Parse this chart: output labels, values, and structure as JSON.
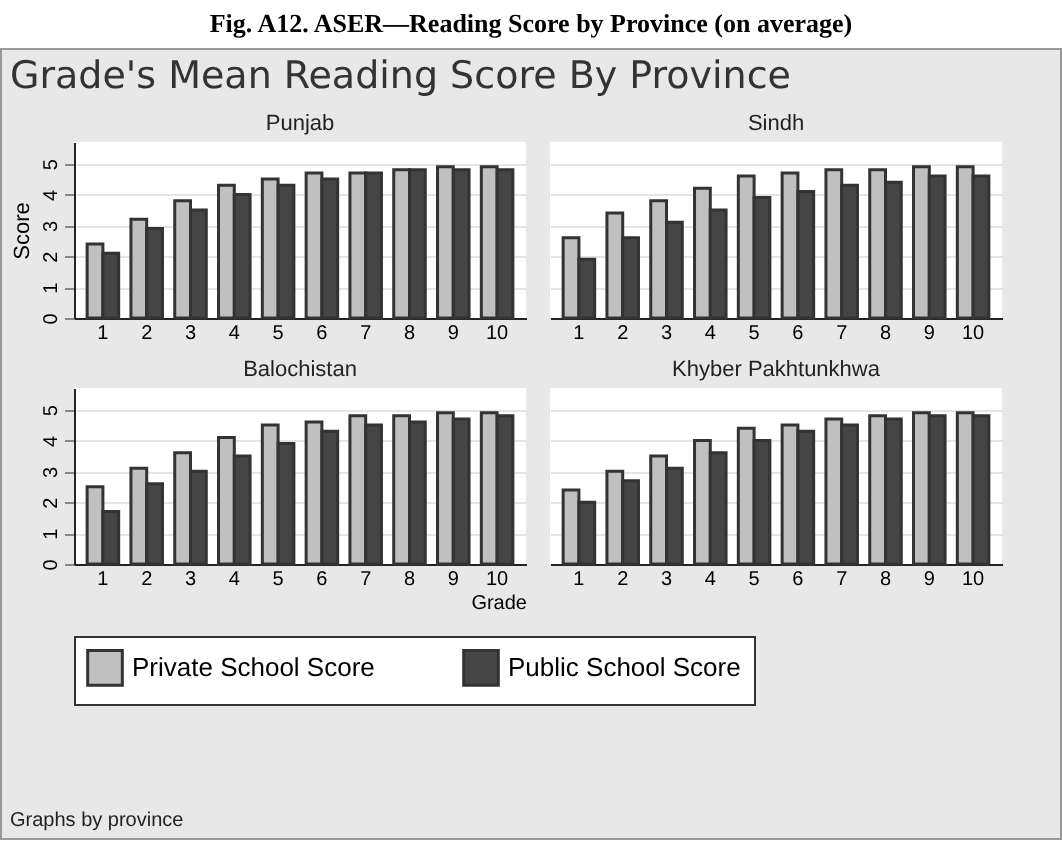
{
  "chart_data": [
    {
      "type": "other",
      "title": "Fig. A12.  ASER—Reading Score by Province (on average)",
      "subtitle": "Grade's Mean Reading Score By Province",
      "annotations": [
        "Graphs by province"
      ]
    },
    {
      "type": "bar",
      "title": "Punjab",
      "ylabel": "Score",
      "categories": [
        "1",
        "2",
        "3",
        "4",
        "5",
        "6",
        "7",
        "8",
        "9",
        "10"
      ],
      "series": [
        {
          "name": "Private School Score",
          "color": "#c0c0c0",
          "values": [
            2.4,
            3.2,
            3.8,
            4.3,
            4.5,
            4.7,
            4.7,
            4.8,
            4.9,
            4.9
          ]
        },
        {
          "name": "Public School Score",
          "color": "#454545",
          "values": [
            2.1,
            2.9,
            3.5,
            4.0,
            4.3,
            4.5,
            4.7,
            4.8,
            4.8,
            4.8
          ]
        }
      ],
      "ylim": [
        0,
        5.7
      ],
      "yticks": [
        0,
        1,
        2,
        3,
        4,
        5
      ],
      "grid": "y",
      "legend": "bottom"
    },
    {
      "type": "bar",
      "title": "Sindh",
      "categories": [
        "1",
        "2",
        "3",
        "4",
        "5",
        "6",
        "7",
        "8",
        "9",
        "10"
      ],
      "series": [
        {
          "name": "Private School Score",
          "color": "#c0c0c0",
          "values": [
            2.6,
            3.4,
            3.8,
            4.2,
            4.6,
            4.7,
            4.8,
            4.8,
            4.9,
            4.9
          ]
        },
        {
          "name": "Public School Score",
          "color": "#454545",
          "values": [
            1.9,
            2.6,
            3.1,
            3.5,
            3.9,
            4.1,
            4.3,
            4.4,
            4.6,
            4.6
          ]
        }
      ],
      "ylim": [
        0,
        5.7
      ],
      "yticks": [
        0,
        1,
        2,
        3,
        4,
        5
      ],
      "grid": "y",
      "legend": "bottom",
      "tick_labels": "x"
    },
    {
      "type": "bar",
      "title": "Balochistan",
      "xlabel": "Grade",
      "categories": [
        "1",
        "2",
        "3",
        "4",
        "5",
        "6",
        "7",
        "8",
        "9",
        "10"
      ],
      "series": [
        {
          "name": "Private School Score",
          "color": "#c0c0c0",
          "values": [
            2.5,
            3.1,
            3.6,
            4.1,
            4.5,
            4.6,
            4.8,
            4.8,
            4.9,
            4.9
          ]
        },
        {
          "name": "Public School Score",
          "color": "#454545",
          "values": [
            1.7,
            2.6,
            3.0,
            3.5,
            3.9,
            4.3,
            4.5,
            4.6,
            4.7,
            4.8
          ]
        }
      ],
      "ylim": [
        0,
        5.7
      ],
      "yticks": [
        0,
        1,
        2,
        3,
        4,
        5
      ],
      "grid": "y",
      "legend": "bottom"
    },
    {
      "type": "bar",
      "title": "Khyber Pakhtunkhwa",
      "categories": [
        "1",
        "2",
        "3",
        "4",
        "5",
        "6",
        "7",
        "8",
        "9",
        "10"
      ],
      "series": [
        {
          "name": "Private School Score",
          "color": "#c0c0c0",
          "values": [
            2.4,
            3.0,
            3.5,
            4.0,
            4.4,
            4.5,
            4.7,
            4.8,
            4.9,
            4.9
          ]
        },
        {
          "name": "Public School Score",
          "color": "#454545",
          "values": [
            2.0,
            2.7,
            3.1,
            3.6,
            4.0,
            4.3,
            4.5,
            4.7,
            4.8,
            4.8
          ]
        }
      ],
      "ylim": [
        0,
        5.7
      ],
      "yticks": [
        0,
        1,
        2,
        3,
        4,
        5
      ],
      "grid": "y",
      "legend": "bottom",
      "tick_labels": "x"
    }
  ]
}
